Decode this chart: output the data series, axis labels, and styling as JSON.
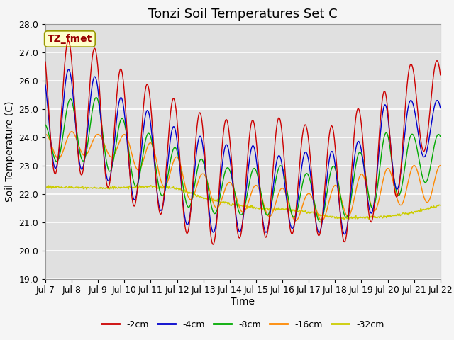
{
  "title": "Tonzi Soil Temperatures Set C",
  "xlabel": "Time",
  "ylabel": "Soil Temperature (C)",
  "ylim": [
    19.0,
    28.0
  ],
  "yticks": [
    19.0,
    20.0,
    21.0,
    22.0,
    23.0,
    24.0,
    25.0,
    26.0,
    27.0,
    28.0
  ],
  "xtick_labels": [
    "Jul 7",
    "Jul 8",
    "Jul 9",
    "Jul 10",
    "Jul 11",
    "Jul 12",
    "Jul 13",
    "Jul 14",
    "Jul 15",
    "Jul 16",
    "Jul 17",
    "Jul 18",
    "Jul 19",
    "Jul 20",
    "Jul 21",
    "Jul 22"
  ],
  "legend_labels": [
    "-2cm",
    "-4cm",
    "-8cm",
    "-16cm",
    "-32cm"
  ],
  "line_colors": [
    "#cc0000",
    "#0000cc",
    "#00aa00",
    "#ff8800",
    "#cccc00"
  ],
  "annotation_text": "TZ_fmet",
  "annotation_box_facecolor": "#ffffcc",
  "annotation_box_edgecolor": "#999900",
  "annotation_text_color": "#990000",
  "plot_bg_color": "#e0e0e0",
  "fig_bg_color": "#f5f5f5",
  "grid_color": "#ffffff",
  "title_fontsize": 13,
  "axis_label_fontsize": 10,
  "tick_fontsize": 9,
  "red_peaks": [
    27.4,
    27.4,
    27.1,
    26.3,
    25.8,
    25.3,
    24.8,
    24.6,
    24.6,
    24.7,
    24.4,
    24.4,
    25.1,
    25.7,
    26.7,
    26.7
  ],
  "red_troughs": [
    22.7,
    22.7,
    22.6,
    21.6,
    21.5,
    20.9,
    20.1,
    20.4,
    20.5,
    20.4,
    20.9,
    19.9,
    21.0,
    21.0,
    23.5,
    23.5
  ],
  "blue_peaks": [
    26.3,
    26.4,
    26.1,
    25.3,
    24.9,
    24.3,
    24.0,
    23.7,
    23.7,
    23.3,
    23.5,
    23.5,
    23.9,
    25.3,
    25.3,
    25.3
  ],
  "blue_troughs": [
    22.9,
    22.9,
    22.8,
    21.9,
    21.6,
    21.1,
    20.6,
    20.7,
    20.6,
    20.7,
    20.9,
    20.2,
    21.2,
    21.5,
    23.3,
    23.3
  ],
  "green_peaks": [
    24.5,
    25.4,
    25.4,
    24.6,
    24.1,
    23.6,
    23.2,
    22.9,
    22.9,
    23.0,
    22.7,
    23.0,
    23.5,
    24.2,
    24.1,
    24.1
  ],
  "green_troughs": [
    23.1,
    23.2,
    23.1,
    22.4,
    22.1,
    21.7,
    21.3,
    21.3,
    21.2,
    21.3,
    21.0,
    21.0,
    21.4,
    21.6,
    22.4,
    22.4
  ],
  "orange_peaks": [
    24.1,
    24.2,
    24.1,
    24.1,
    23.8,
    23.3,
    22.7,
    22.4,
    22.3,
    22.2,
    22.0,
    22.3,
    22.7,
    22.9,
    23.0,
    23.0
  ],
  "orange_troughs": [
    23.2,
    23.3,
    23.4,
    23.2,
    22.5,
    22.0,
    21.6,
    21.4,
    21.3,
    21.1,
    21.0,
    21.1,
    21.3,
    21.5,
    21.7,
    21.7
  ],
  "yellow_vals": [
    22.25,
    22.22,
    22.2,
    22.22,
    22.25,
    22.2,
    21.85,
    21.65,
    21.5,
    21.45,
    21.35,
    21.15,
    21.15,
    21.2,
    21.35,
    21.6
  ]
}
